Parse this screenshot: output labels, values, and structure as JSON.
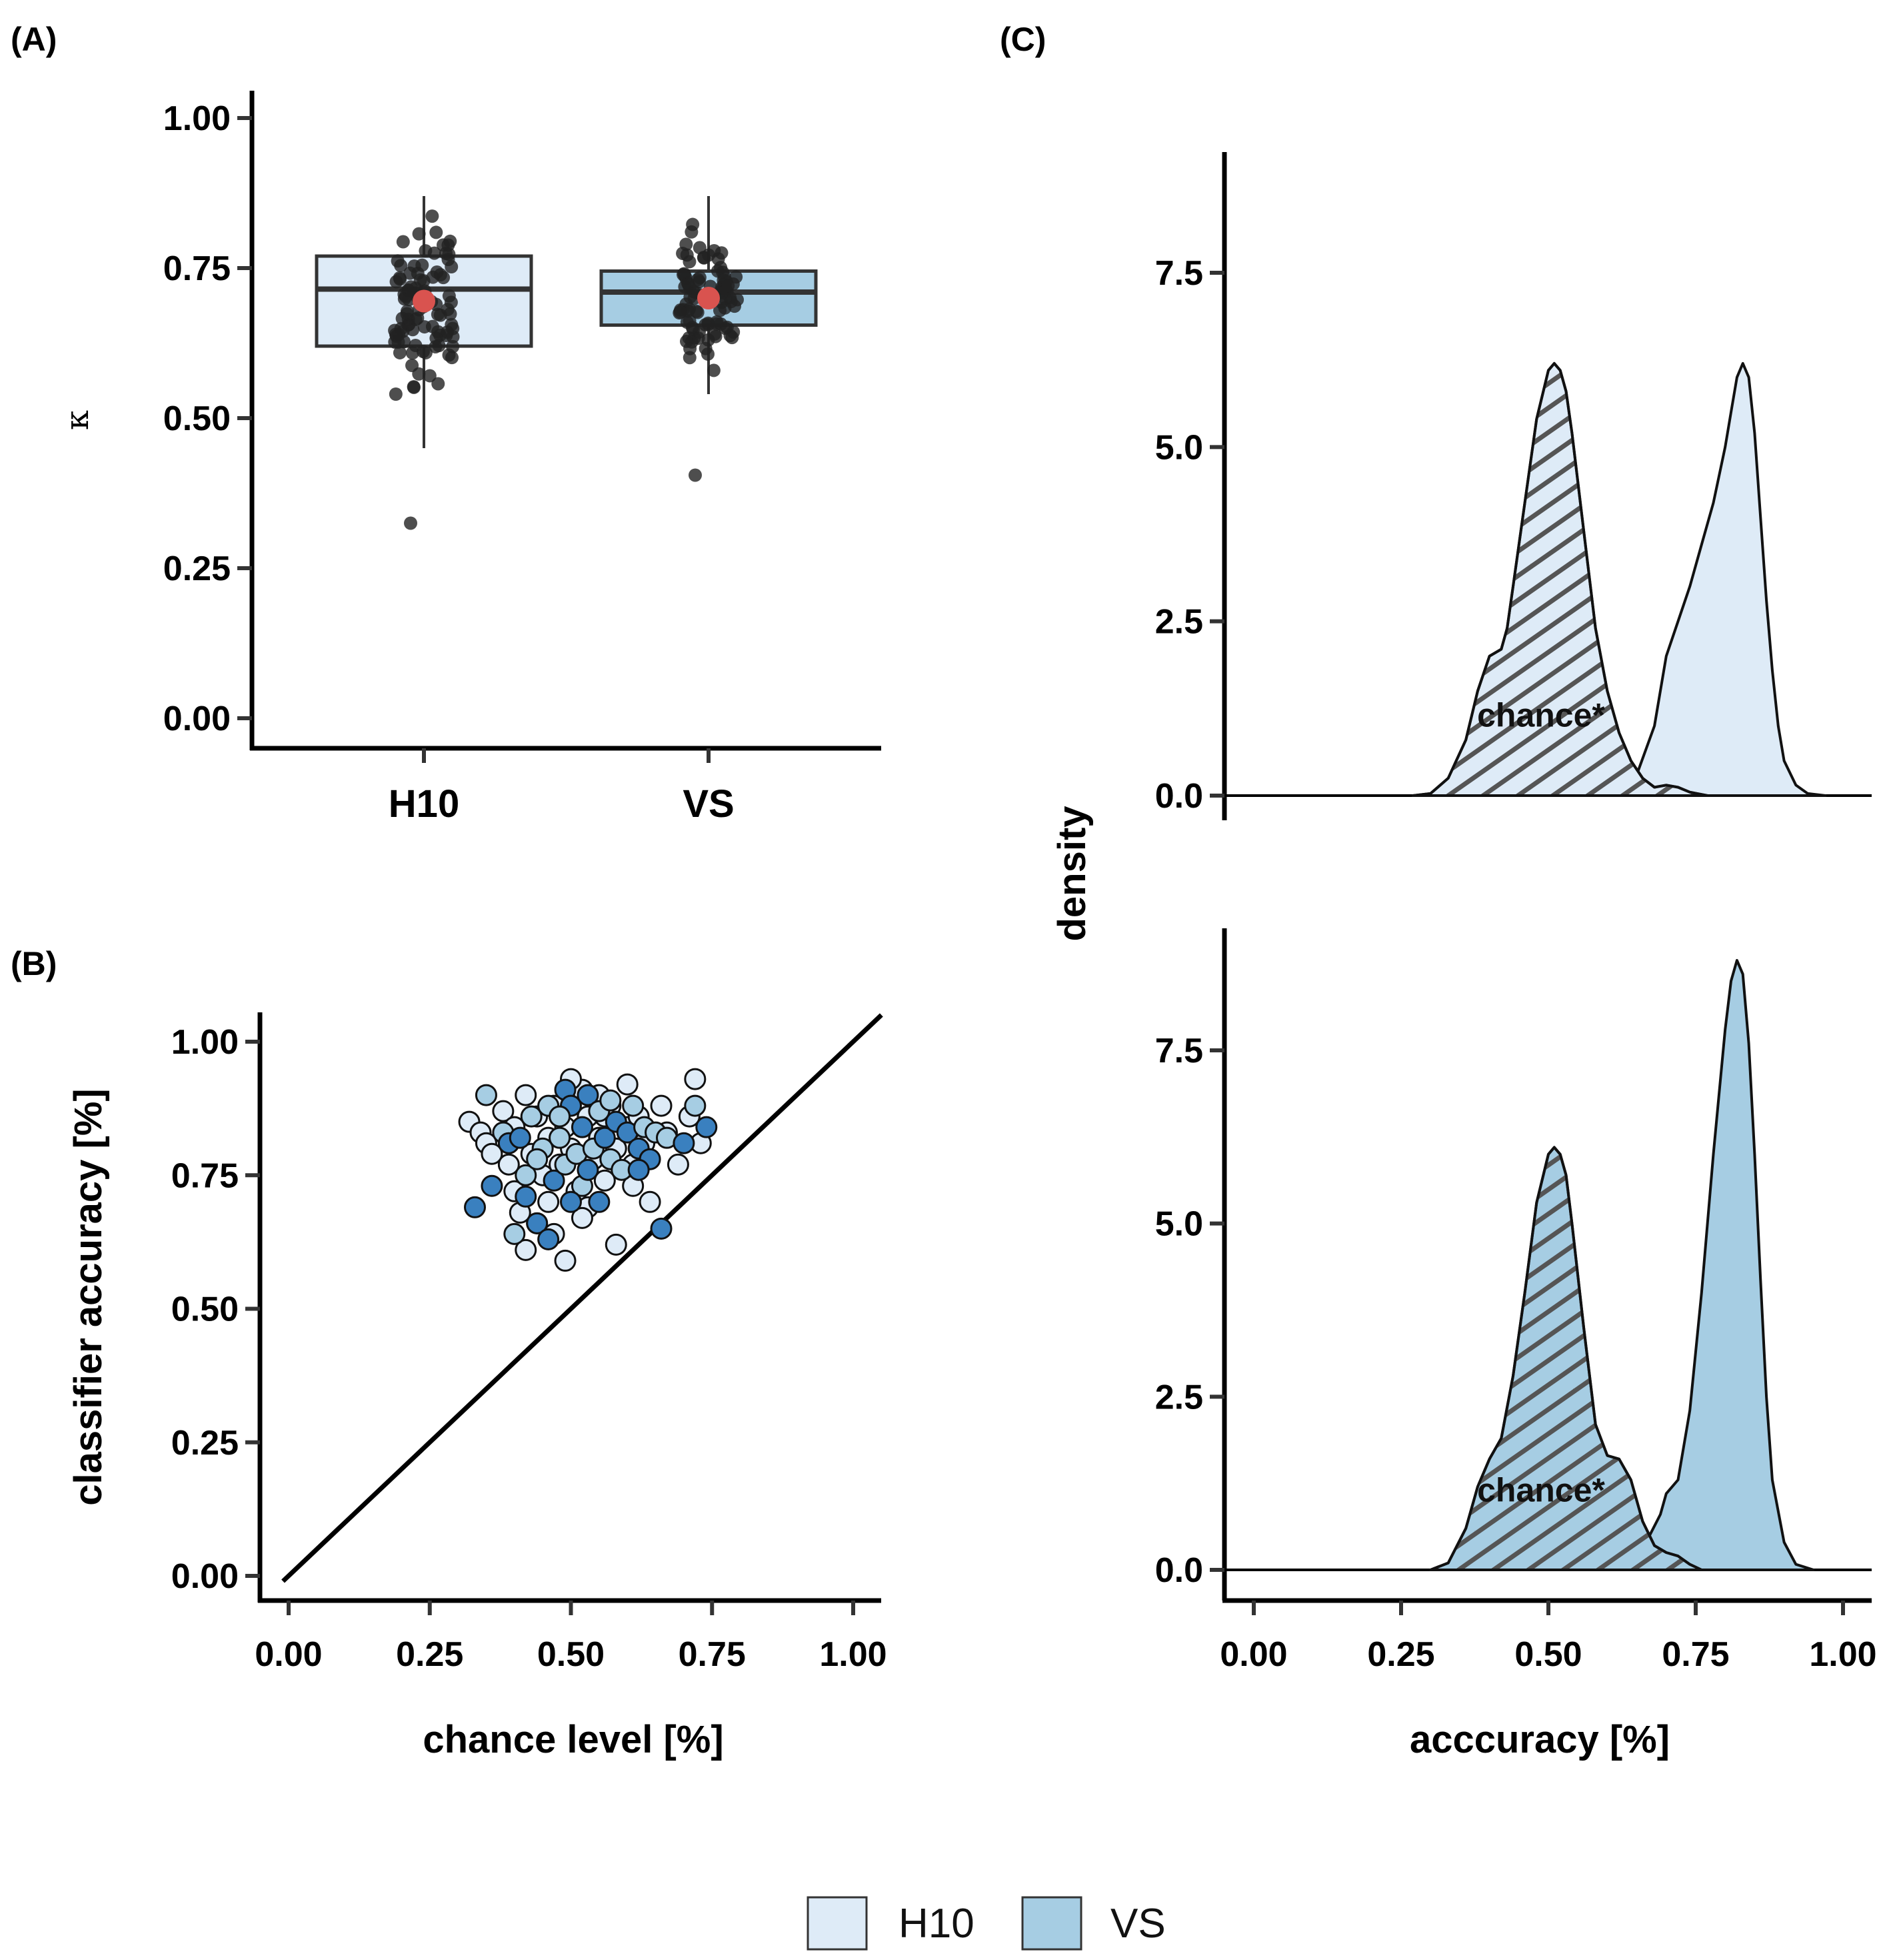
{
  "panels": {
    "a": "(A)",
    "b": "(B)",
    "c": "(C)"
  },
  "colors": {
    "H10": "#deebf7",
    "VS": "#a6cde3",
    "vs_dark": "#3a80bf",
    "mean": "#d9534f",
    "point": "#222222"
  },
  "legend": {
    "h10": "H10",
    "vs": "VS"
  },
  "chart_data": [
    {
      "id": "A",
      "type": "box",
      "title": "",
      "xlabel": "",
      "ylabel": "κ",
      "categories": [
        "H10",
        "VS"
      ],
      "ylim": [
        0,
        1
      ],
      "yticks": [
        "0.00",
        "0.25",
        "0.50",
        "0.75",
        "1.00"
      ],
      "boxes": [
        {
          "name": "H10",
          "q1": 0.62,
          "median": 0.715,
          "q3": 0.77,
          "whisker_low": 0.45,
          "whisker_high": 0.87,
          "mean": 0.695
        },
        {
          "name": "VS",
          "q1": 0.655,
          "median": 0.71,
          "q3": 0.745,
          "whisker_low": 0.54,
          "whisker_high": 0.87,
          "mean": 0.7
        }
      ],
      "outliers": {
        "H10": [
          0.325
        ],
        "VS": [
          0.405
        ]
      }
    },
    {
      "id": "B",
      "type": "scatter",
      "title": "",
      "xlabel": "chance level [%]",
      "ylabel": "classifier accuracy [%]",
      "xlim": [
        -0.05,
        1.05
      ],
      "ylim": [
        -0.03,
        1.05
      ],
      "xticks": [
        "0.00",
        "0.25",
        "0.50",
        "0.75",
        "1.00"
      ],
      "yticks": [
        "0.00",
        "0.25",
        "0.50",
        "0.75",
        "1.00"
      ],
      "reference_line": "y = x",
      "series": [
        {
          "name": "H10",
          "points": [
            [
              0.32,
              0.85
            ],
            [
              0.34,
              0.83
            ],
            [
              0.35,
              0.81
            ],
            [
              0.36,
              0.79
            ],
            [
              0.38,
              0.87
            ],
            [
              0.4,
              0.84
            ],
            [
              0.4,
              0.72
            ],
            [
              0.41,
              0.68
            ],
            [
              0.42,
              0.61
            ],
            [
              0.42,
              0.9
            ],
            [
              0.43,
              0.79
            ],
            [
              0.44,
              0.86
            ],
            [
              0.45,
              0.75
            ],
            [
              0.46,
              0.7
            ],
            [
              0.46,
              0.82
            ],
            [
              0.47,
              0.88
            ],
            [
              0.48,
              0.77
            ],
            [
              0.49,
              0.59
            ],
            [
              0.49,
              0.84
            ],
            [
              0.5,
              0.8
            ],
            [
              0.51,
              0.72
            ],
            [
              0.52,
              0.91
            ],
            [
              0.53,
              0.69
            ],
            [
              0.53,
              0.86
            ],
            [
              0.54,
              0.78
            ],
            [
              0.55,
              0.82
            ],
            [
              0.56,
              0.74
            ],
            [
              0.57,
              0.88
            ],
            [
              0.58,
              0.62
            ],
            [
              0.58,
              0.8
            ],
            [
              0.6,
              0.84
            ],
            [
              0.61,
              0.77
            ],
            [
              0.62,
              0.86
            ],
            [
              0.63,
              0.81
            ],
            [
              0.64,
              0.7
            ],
            [
              0.66,
              0.88
            ],
            [
              0.67,
              0.83
            ],
            [
              0.69,
              0.77
            ],
            [
              0.71,
              0.86
            ],
            [
              0.72,
              0.93
            ],
            [
              0.73,
              0.81
            ],
            [
              0.44,
              0.66
            ],
            [
              0.5,
              0.93
            ],
            [
              0.55,
              0.9
            ],
            [
              0.6,
              0.92
            ],
            [
              0.47,
              0.64
            ],
            [
              0.52,
              0.67
            ],
            [
              0.39,
              0.77
            ],
            [
              0.56,
              0.86
            ],
            [
              0.61,
              0.73
            ]
          ]
        },
        {
          "name": "VS",
          "points": [
            [
              0.33,
              0.69
            ],
            [
              0.35,
              0.9
            ],
            [
              0.36,
              0.73
            ],
            [
              0.38,
              0.83
            ],
            [
              0.39,
              0.81
            ],
            [
              0.4,
              0.64
            ],
            [
              0.41,
              0.82
            ],
            [
              0.42,
              0.75
            ],
            [
              0.42,
              0.71
            ],
            [
              0.43,
              0.86
            ],
            [
              0.44,
              0.66
            ],
            [
              0.45,
              0.8
            ],
            [
              0.46,
              0.63
            ],
            [
              0.46,
              0.88
            ],
            [
              0.47,
              0.74
            ],
            [
              0.48,
              0.82
            ],
            [
              0.49,
              0.91
            ],
            [
              0.49,
              0.77
            ],
            [
              0.5,
              0.88
            ],
            [
              0.51,
              0.79
            ],
            [
              0.52,
              0.84
            ],
            [
              0.52,
              0.73
            ],
            [
              0.53,
              0.9
            ],
            [
              0.54,
              0.8
            ],
            [
              0.55,
              0.7
            ],
            [
              0.55,
              0.87
            ],
            [
              0.56,
              0.82
            ],
            [
              0.57,
              0.78
            ],
            [
              0.58,
              0.85
            ],
            [
              0.59,
              0.76
            ],
            [
              0.6,
              0.83
            ],
            [
              0.61,
              0.88
            ],
            [
              0.62,
              0.8
            ],
            [
              0.63,
              0.84
            ],
            [
              0.64,
              0.78
            ],
            [
              0.65,
              0.83
            ],
            [
              0.66,
              0.65
            ],
            [
              0.67,
              0.82
            ],
            [
              0.7,
              0.81
            ],
            [
              0.72,
              0.88
            ],
            [
              0.74,
              0.84
            ],
            [
              0.44,
              0.78
            ],
            [
              0.5,
              0.7
            ],
            [
              0.57,
              0.89
            ],
            [
              0.53,
              0.76
            ],
            [
              0.48,
              0.86
            ],
            [
              0.62,
              0.76
            ]
          ]
        }
      ]
    },
    {
      "id": "C",
      "type": "area",
      "title": "",
      "xlabel": "acccuracy [%]",
      "ylabel": "density",
      "xlim": [
        -0.05,
        1.05
      ],
      "ylim": [
        0,
        9.3
      ],
      "xticks": [
        "0.00",
        "0.25",
        "0.50",
        "0.75",
        "1.00"
      ],
      "yticks": [
        "0.0",
        "2.5",
        "5.0",
        "7.5"
      ],
      "annotation": "chance*",
      "facets": [
        {
          "name": "H10",
          "chance": {
            "x": [
              0.27,
              0.3,
              0.33,
              0.36,
              0.38,
              0.4,
              0.42,
              0.43,
              0.44,
              0.46,
              0.48,
              0.5,
              0.51,
              0.52,
              0.53,
              0.54,
              0.56,
              0.58,
              0.6,
              0.62,
              0.64,
              0.66,
              0.68,
              0.7,
              0.72,
              0.74,
              0.77
            ],
            "y": [
              0,
              0.03,
              0.25,
              0.8,
              1.5,
              2.0,
              2.1,
              2.4,
              3.0,
              4.2,
              5.4,
              6.1,
              6.2,
              6.1,
              5.8,
              5.2,
              3.8,
              2.4,
              1.5,
              0.9,
              0.5,
              0.25,
              0.12,
              0.15,
              0.12,
              0.05,
              0
            ]
          },
          "classifier": {
            "x": [
              0.6,
              0.65,
              0.68,
              0.7,
              0.72,
              0.74,
              0.76,
              0.78,
              0.8,
              0.81,
              0.82,
              0.83,
              0.84,
              0.85,
              0.86,
              0.87,
              0.88,
              0.89,
              0.9,
              0.92,
              0.94,
              0.97
            ],
            "y": [
              0,
              0.3,
              1.0,
              2.0,
              2.5,
              3.0,
              3.6,
              4.2,
              5.0,
              5.5,
              6.0,
              6.2,
              6.0,
              5.2,
              4.0,
              2.8,
              1.8,
              1.0,
              0.5,
              0.15,
              0.03,
              0
            ]
          }
        },
        {
          "name": "VS",
          "chance": {
            "x": [
              0.3,
              0.33,
              0.36,
              0.38,
              0.4,
              0.42,
              0.44,
              0.46,
              0.48,
              0.5,
              0.51,
              0.52,
              0.53,
              0.54,
              0.56,
              0.58,
              0.6,
              0.62,
              0.64,
              0.66,
              0.68,
              0.7,
              0.72,
              0.74,
              0.76
            ],
            "y": [
              0,
              0.1,
              0.6,
              1.2,
              1.6,
              1.9,
              2.8,
              4.0,
              5.3,
              6.0,
              6.1,
              6.0,
              5.7,
              5.0,
              3.5,
              2.1,
              1.65,
              1.6,
              1.3,
              0.7,
              0.35,
              0.25,
              0.2,
              0.08,
              0
            ]
          },
          "classifier": {
            "x": [
              0.62,
              0.66,
              0.69,
              0.7,
              0.71,
              0.72,
              0.74,
              0.76,
              0.78,
              0.8,
              0.81,
              0.82,
              0.83,
              0.84,
              0.85,
              0.86,
              0.87,
              0.88,
              0.9,
              0.92,
              0.95
            ],
            "y": [
              0,
              0.3,
              0.8,
              1.1,
              1.2,
              1.3,
              2.3,
              4.0,
              6.0,
              7.8,
              8.5,
              8.8,
              8.6,
              7.6,
              6.0,
              4.2,
              2.5,
              1.3,
              0.4,
              0.08,
              0
            ]
          }
        }
      ]
    }
  ]
}
